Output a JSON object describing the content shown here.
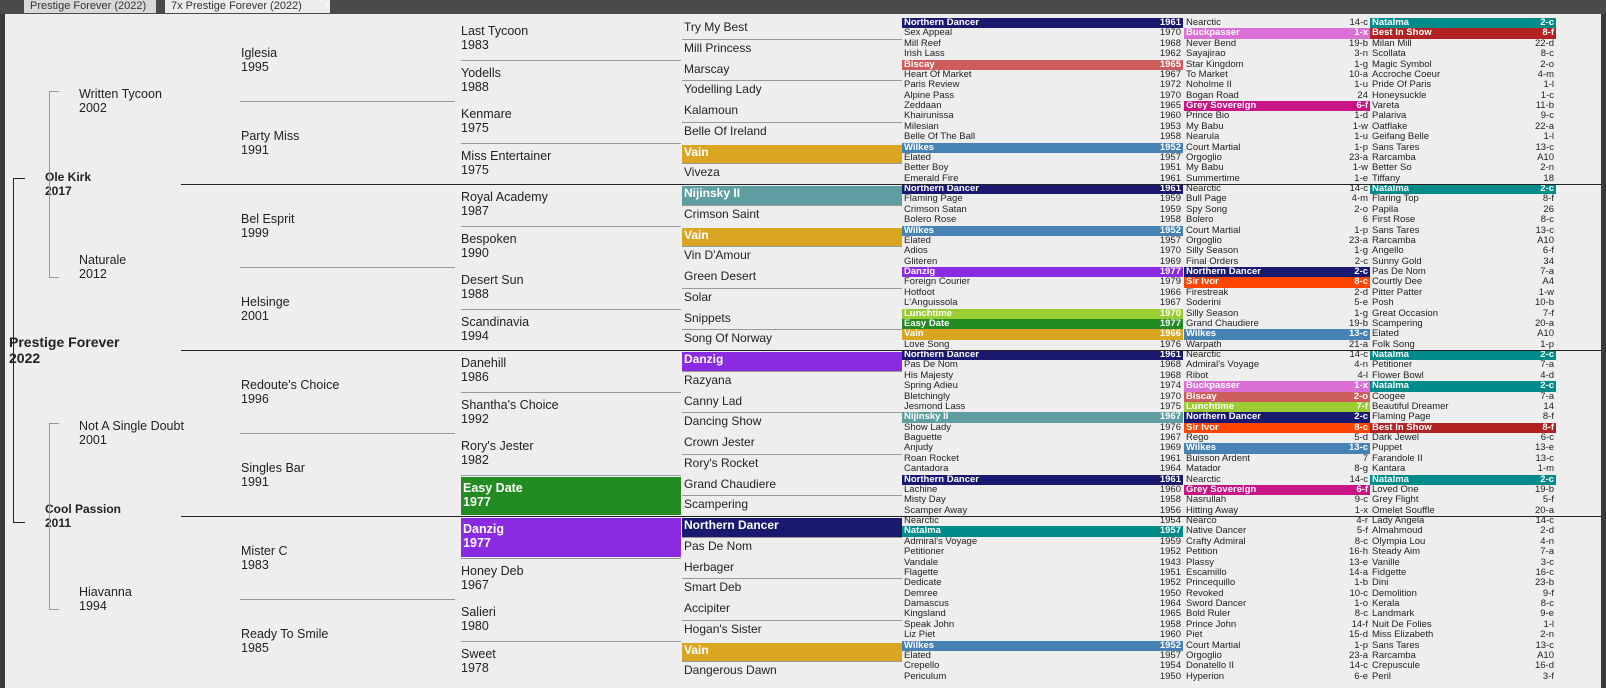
{
  "tabs": [
    {
      "label": "Prestige Forever (2022)",
      "active": false
    },
    {
      "label": "7x Prestige Forever (2022)",
      "active": true
    }
  ],
  "colors": {
    "danzig": "#8a2be2",
    "northern_dancer": "#191970",
    "natalma": "#008b8b",
    "vain": "#daa520",
    "easy_date": "#228b22",
    "nijinsky": "#5f9ea0",
    "wilkes": "#4682b4",
    "buckpasser": "#da70d6",
    "best_in_show": "#b22222",
    "biscay": "#cd5c5c",
    "grey_sovereign": "#c71585",
    "sir_ivor": "#ff4500",
    "lunchtime": "#9acd32"
  },
  "horse": {
    "name": "Prestige Forever",
    "year": "2022"
  },
  "gen1": [
    {
      "name": "Ole Kirk",
      "year": "2017"
    },
    {
      "name": "Cool Passion",
      "year": "2011"
    }
  ],
  "gen2": [
    {
      "name": "Written Tycoon",
      "year": "2002"
    },
    {
      "name": "Naturale",
      "year": "2012"
    },
    {
      "name": "Not A Single Doubt",
      "year": "2001"
    },
    {
      "name": "Hiavanna",
      "year": "1994"
    }
  ],
  "gen3": [
    {
      "name": "Iglesia",
      "year": "1995"
    },
    {
      "name": "Party Miss",
      "year": "1991"
    },
    {
      "name": "Bel Esprit",
      "year": "1999"
    },
    {
      "name": "Helsinge",
      "year": "2001"
    },
    {
      "name": "Redoute's Choice",
      "year": "1996"
    },
    {
      "name": "Singles Bar",
      "year": "1991"
    },
    {
      "name": "Mister C",
      "year": "1983"
    },
    {
      "name": "Ready To Smile",
      "year": "1985"
    }
  ],
  "gen4": [
    {
      "name": "Last Tycoon",
      "year": "1983"
    },
    {
      "name": "Yodells",
      "year": "1988"
    },
    {
      "name": "Kenmare",
      "year": "1975"
    },
    {
      "name": "Miss Entertainer",
      "year": "1975"
    },
    {
      "name": "Royal Academy",
      "year": "1987"
    },
    {
      "name": "Bespoken",
      "year": "1990"
    },
    {
      "name": "Desert Sun",
      "year": "1988"
    },
    {
      "name": "Scandinavia",
      "year": "1994"
    },
    {
      "name": "Danehill",
      "year": "1986"
    },
    {
      "name": "Shantha's Choice",
      "year": "1992"
    },
    {
      "name": "Rory's Jester",
      "year": "1982"
    },
    {
      "name": "Easy Date",
      "year": "1977",
      "color": "#228b22"
    },
    {
      "name": "Danzig",
      "year": "1977",
      "color": "#8a2be2"
    },
    {
      "name": "Honey Deb",
      "year": "1967"
    },
    {
      "name": "Salieri",
      "year": "1980"
    },
    {
      "name": "Sweet",
      "year": "1978"
    }
  ],
  "gen5": [
    {
      "name": "Try My Best"
    },
    {
      "name": "Mill Princess"
    },
    {
      "name": "Marscay"
    },
    {
      "name": "Yodelling Lady"
    },
    {
      "name": "Kalamoun"
    },
    {
      "name": "Belle Of Ireland"
    },
    {
      "name": "Vain",
      "color": "#daa520"
    },
    {
      "name": "Viveza"
    },
    {
      "name": "Nijinsky II",
      "color": "#5f9ea0"
    },
    {
      "name": "Crimson Saint"
    },
    {
      "name": "Vain",
      "color": "#daa520"
    },
    {
      "name": "Vin D'Amour"
    },
    {
      "name": "Green Desert"
    },
    {
      "name": "Solar"
    },
    {
      "name": "Snippets"
    },
    {
      "name": "Song Of Norway"
    },
    {
      "name": "Danzig",
      "color": "#8a2be2"
    },
    {
      "name": "Razyana"
    },
    {
      "name": "Canny Lad"
    },
    {
      "name": "Dancing Show"
    },
    {
      "name": "Crown Jester"
    },
    {
      "name": "Rory's Rocket"
    },
    {
      "name": "Grand Chaudiere"
    },
    {
      "name": "Scampering"
    },
    {
      "name": "Northern Dancer",
      "color": "#191970"
    },
    {
      "name": "Pas De Nom"
    },
    {
      "name": "Herbager"
    },
    {
      "name": "Smart Deb"
    },
    {
      "name": "Accipiter"
    },
    {
      "name": "Hogan's Sister"
    },
    {
      "name": "Vain",
      "color": "#daa520"
    },
    {
      "name": "Dangerous Dawn"
    }
  ],
  "gen6": [
    {
      "name": "Northern Dancer",
      "year": "1961",
      "color": "#191970"
    },
    {
      "name": "Sex Appeal",
      "year": "1970"
    },
    {
      "name": "Mill Reef",
      "year": "1968"
    },
    {
      "name": "Irish Lass",
      "year": "1962"
    },
    {
      "name": "Biscay",
      "year": "1965",
      "color": "#cd5c5c"
    },
    {
      "name": "Heart Of Market",
      "year": "1967"
    },
    {
      "name": "Paris Review",
      "year": "1972"
    },
    {
      "name": "Alpine Pass",
      "year": "1970"
    },
    {
      "name": "Zeddaan",
      "year": "1965"
    },
    {
      "name": "Khairunissa",
      "year": "1960"
    },
    {
      "name": "Milesian",
      "year": "1953"
    },
    {
      "name": "Belle Of The Ball",
      "year": "1958"
    },
    {
      "name": "Wilkes",
      "year": "1952",
      "color": "#4682b4"
    },
    {
      "name": "Elated",
      "year": "1957"
    },
    {
      "name": "Better Boy",
      "year": "1951"
    },
    {
      "name": "Emerald Fire",
      "year": "1961"
    },
    {
      "name": "Northern Dancer",
      "year": "1961",
      "color": "#191970"
    },
    {
      "name": "Flaming Page",
      "year": "1959"
    },
    {
      "name": "Crimson Satan",
      "year": "1959"
    },
    {
      "name": "Bolero Rose",
      "year": "1958"
    },
    {
      "name": "Wilkes",
      "year": "1952",
      "color": "#4682b4"
    },
    {
      "name": "Elated",
      "year": "1957"
    },
    {
      "name": "Adios",
      "year": "1970"
    },
    {
      "name": "Gliteren",
      "year": "1969"
    },
    {
      "name": "Danzig",
      "year": "1977",
      "color": "#8a2be2"
    },
    {
      "name": "Foreign Courier",
      "year": "1979"
    },
    {
      "name": "Hotfoot",
      "year": "1966"
    },
    {
      "name": "L'Anguissola",
      "year": "1967"
    },
    {
      "name": "Lunchtime",
      "year": "1970",
      "color": "#9acd32"
    },
    {
      "name": "Easy Date",
      "year": "1977",
      "color": "#228b22"
    },
    {
      "name": "Vain",
      "year": "1966",
      "color": "#daa520"
    },
    {
      "name": "Love Song",
      "year": "1976"
    },
    {
      "name": "Northern Dancer",
      "year": "1961",
      "color": "#191970"
    },
    {
      "name": "Pas De Nom",
      "year": "1968"
    },
    {
      "name": "His Majesty",
      "year": "1968"
    },
    {
      "name": "Spring Adieu",
      "year": "1974"
    },
    {
      "name": "Bletchingly",
      "year": "1970"
    },
    {
      "name": "Jesmond Lass",
      "year": "1975"
    },
    {
      "name": "Nijinsky II",
      "year": "1967",
      "color": "#5f9ea0"
    },
    {
      "name": "Show Lady",
      "year": "1976"
    },
    {
      "name": "Baguette",
      "year": "1967"
    },
    {
      "name": "Anjudy",
      "year": "1969"
    },
    {
      "name": "Roan Rocket",
      "year": "1961"
    },
    {
      "name": "Cantadora",
      "year": "1964"
    },
    {
      "name": "Northern Dancer",
      "year": "1961",
      "color": "#191970"
    },
    {
      "name": "Lachine",
      "year": "1960"
    },
    {
      "name": "Misty Day",
      "year": "1958"
    },
    {
      "name": "Scamper Away",
      "year": "1956"
    },
    {
      "name": "Nearctic",
      "year": "1954"
    },
    {
      "name": "Natalma",
      "year": "1957",
      "color": "#008b8b"
    },
    {
      "name": "Admiral's Voyage",
      "year": "1959"
    },
    {
      "name": "Petitioner",
      "year": "1952"
    },
    {
      "name": "Vandale",
      "year": "1943"
    },
    {
      "name": "Flagette",
      "year": "1951"
    },
    {
      "name": "Dedicate",
      "year": "1952"
    },
    {
      "name": "Demree",
      "year": "1950"
    },
    {
      "name": "Damascus",
      "year": "1964"
    },
    {
      "name": "Kingsland",
      "year": "1965"
    },
    {
      "name": "Speak John",
      "year": "1958"
    },
    {
      "name": "Liz Piet",
      "year": "1960"
    },
    {
      "name": "Wilkes",
      "year": "1952",
      "color": "#4682b4"
    },
    {
      "name": "Elated",
      "year": "1957"
    },
    {
      "name": "Crepello",
      "year": "1954"
    },
    {
      "name": "Periculum",
      "year": "1950"
    }
  ],
  "gen7a": [
    {
      "name": "Nearctic",
      "code": "14-c"
    },
    {
      "name": "Buckpasser",
      "code": "1-x",
      "color": "#da70d6"
    },
    {
      "name": "Never Bend",
      "code": "19-b"
    },
    {
      "name": "Sayajirao",
      "code": "3-n"
    },
    {
      "name": "Star Kingdom",
      "code": "1-g"
    },
    {
      "name": "To Market",
      "code": "10-a"
    },
    {
      "name": "Noholme II",
      "code": "1-u"
    },
    {
      "name": "Bogan Road",
      "code": "24"
    },
    {
      "name": "Grey Sovereign",
      "code": "6-f",
      "color": "#c71585"
    },
    {
      "name": "Prince Bio",
      "code": "1-d"
    },
    {
      "name": "My Babu",
      "code": "1-w"
    },
    {
      "name": "Nearula",
      "code": "1-u"
    },
    {
      "name": "Court Martial",
      "code": "1-p"
    },
    {
      "name": "Orgoglio",
      "code": "23-a"
    },
    {
      "name": "My Babu",
      "code": "1-w"
    },
    {
      "name": "Summertime",
      "code": "1-e"
    },
    {
      "name": "Nearctic",
      "code": "14-c"
    },
    {
      "name": "Bull Page",
      "code": "4-m"
    },
    {
      "name": "Spy Song",
      "code": "2-o"
    },
    {
      "name": "Bolero",
      "code": "6"
    },
    {
      "name": "Court Martial",
      "code": "1-p"
    },
    {
      "name": "Orgoglio",
      "code": "23-a"
    },
    {
      "name": "Silly Season",
      "code": "1-g"
    },
    {
      "name": "Final Orders",
      "code": "2-c"
    },
    {
      "name": "Northern Dancer",
      "code": "2-c",
      "color": "#191970"
    },
    {
      "name": "Sir Ivor",
      "code": "8-c",
      "color": "#ff4500"
    },
    {
      "name": "Firestreak",
      "code": "2-d"
    },
    {
      "name": "Soderini",
      "code": "5-e"
    },
    {
      "name": "Silly Season",
      "code": "1-g"
    },
    {
      "name": "Grand Chaudiere",
      "code": "19-b"
    },
    {
      "name": "Wilkes",
      "code": "13-c",
      "color": "#4682b4"
    },
    {
      "name": "Warpath",
      "code": "21-a"
    },
    {
      "name": "Nearctic",
      "code": "14-c"
    },
    {
      "name": "Admiral's Voyage",
      "code": "4-n"
    },
    {
      "name": "Ribot",
      "code": "4-l"
    },
    {
      "name": "Buckpasser",
      "code": "1-x",
      "color": "#da70d6"
    },
    {
      "name": "Biscay",
      "code": "2-o",
      "color": "#cd5c5c"
    },
    {
      "name": "Lunchtime",
      "code": "7-f",
      "color": "#9acd32"
    },
    {
      "name": "Northern Dancer",
      "code": "2-c",
      "color": "#191970"
    },
    {
      "name": "Sir Ivor",
      "code": "8-c",
      "color": "#ff4500"
    },
    {
      "name": "Rego",
      "code": "5-d"
    },
    {
      "name": "Wilkes",
      "code": "13-c",
      "color": "#4682b4"
    },
    {
      "name": "Buisson Ardent",
      "code": "7"
    },
    {
      "name": "Matador",
      "code": "8-g"
    },
    {
      "name": "Nearctic",
      "code": "14-c"
    },
    {
      "name": "Grey Sovereign",
      "code": "6-f",
      "color": "#c71585"
    },
    {
      "name": "Nasrullah",
      "code": "9-c"
    },
    {
      "name": "Hitting Away",
      "code": "1-x"
    },
    {
      "name": "Nearco",
      "code": "4-r"
    },
    {
      "name": "Native Dancer",
      "code": "5-f"
    },
    {
      "name": "Crafty Admiral",
      "code": "8-c"
    },
    {
      "name": "Petition",
      "code": "16-h"
    },
    {
      "name": "Plassy",
      "code": "13-e"
    },
    {
      "name": "Escamillo",
      "code": "14-a"
    },
    {
      "name": "Princequillo",
      "code": "1-b"
    },
    {
      "name": "Revoked",
      "code": "10-c"
    },
    {
      "name": "Sword Dancer",
      "code": "1-o"
    },
    {
      "name": "Bold Ruler",
      "code": "8-c"
    },
    {
      "name": "Prince John",
      "code": "14-f"
    },
    {
      "name": "Piet",
      "code": "15-d"
    },
    {
      "name": "Court Martial",
      "code": "1-p"
    },
    {
      "name": "Orgoglio",
      "code": "23-a"
    },
    {
      "name": "Donatello II",
      "code": "14-c"
    },
    {
      "name": "Hyperion",
      "code": "6-e"
    }
  ],
  "gen7b": [
    {
      "name": "Natalma",
      "code": "2-c",
      "color": "#008b8b"
    },
    {
      "name": "Best In Show",
      "code": "8-f",
      "color": "#b22222"
    },
    {
      "name": "Milan Mill",
      "code": "22-d"
    },
    {
      "name": "Scollata",
      "code": "8-c"
    },
    {
      "name": "Magic Symbol",
      "code": "2-o"
    },
    {
      "name": "Accroche Coeur",
      "code": "4-m"
    },
    {
      "name": "Pride Of Paris",
      "code": "1-l"
    },
    {
      "name": "Honeysuckle",
      "code": "1-c"
    },
    {
      "name": "Vareta",
      "code": "11-b"
    },
    {
      "name": "Palariva",
      "code": "9-c"
    },
    {
      "name": "Oatflake",
      "code": "22-a"
    },
    {
      "name": "Geifang Belle",
      "code": "1-l"
    },
    {
      "name": "Sans Tares",
      "code": "13-c"
    },
    {
      "name": "Rarcamba",
      "code": "A10"
    },
    {
      "name": "Better So",
      "code": "2-n"
    },
    {
      "name": "Tiffany",
      "code": "18"
    },
    {
      "name": "Natalma",
      "code": "2-c",
      "color": "#008b8b"
    },
    {
      "name": "Flaring Top",
      "code": "8-f"
    },
    {
      "name": "Papila",
      "code": "26"
    },
    {
      "name": "First Rose",
      "code": "8-c"
    },
    {
      "name": "Sans Tares",
      "code": "13-c"
    },
    {
      "name": "Rarcamba",
      "code": "A10"
    },
    {
      "name": "Angello",
      "code": "6-f"
    },
    {
      "name": "Sunny Gold",
      "code": "34"
    },
    {
      "name": "Pas De Nom",
      "code": "7-a"
    },
    {
      "name": "Courtly Dee",
      "code": "A4"
    },
    {
      "name": "Pitter Patter",
      "code": "1-w"
    },
    {
      "name": "Posh",
      "code": "10-b"
    },
    {
      "name": "Great Occasion",
      "code": "7-f"
    },
    {
      "name": "Scampering",
      "code": "20-a"
    },
    {
      "name": "Elated",
      "code": "A10"
    },
    {
      "name": "Folk Song",
      "code": "1-p"
    },
    {
      "name": "Natalma",
      "code": "2-c",
      "color": "#008b8b"
    },
    {
      "name": "Petitioner",
      "code": "7-a"
    },
    {
      "name": "Flower Bowl",
      "code": "4-d"
    },
    {
      "name": "Natalma",
      "code": "2-c",
      "color": "#008b8b"
    },
    {
      "name": "Coogee",
      "code": "7-a"
    },
    {
      "name": "Beautiful Dreamer",
      "code": "14"
    },
    {
      "name": "Flaming Page",
      "code": "8-f"
    },
    {
      "name": "Best In Show",
      "code": "8-f",
      "color": "#b22222"
    },
    {
      "name": "Dark Jewel",
      "code": "6-c"
    },
    {
      "name": "Puppet",
      "code": "13-e"
    },
    {
      "name": "Farandole II",
      "code": "13-c"
    },
    {
      "name": "Kantara",
      "code": "1-m"
    },
    {
      "name": "Natalma",
      "code": "2-c",
      "color": "#008b8b"
    },
    {
      "name": "Loved One",
      "code": "19-b"
    },
    {
      "name": "Grey Flight",
      "code": "5-f"
    },
    {
      "name": "Omelet Souffle",
      "code": "20-a"
    },
    {
      "name": "Lady Angela",
      "code": "14-c"
    },
    {
      "name": "Almahmoud",
      "code": "2-d"
    },
    {
      "name": "Olympia Lou",
      "code": "4-n"
    },
    {
      "name": "Steady Aim",
      "code": "7-a"
    },
    {
      "name": "Vanille",
      "code": "3-c"
    },
    {
      "name": "Fidgette",
      "code": "16-c"
    },
    {
      "name": "Dini",
      "code": "23-b"
    },
    {
      "name": "Demolition",
      "code": "9-f"
    },
    {
      "name": "Kerala",
      "code": "8-c"
    },
    {
      "name": "Landmark",
      "code": "9-e"
    },
    {
      "name": "Nuit De Folies",
      "code": "1-l"
    },
    {
      "name": "Miss Elizabeth",
      "code": "2-n"
    },
    {
      "name": "Sans Tares",
      "code": "13-c"
    },
    {
      "name": "Rarcamba",
      "code": "A10"
    },
    {
      "name": "Crepuscule",
      "code": "16-d"
    },
    {
      "name": "Peril",
      "code": "3-f"
    }
  ]
}
